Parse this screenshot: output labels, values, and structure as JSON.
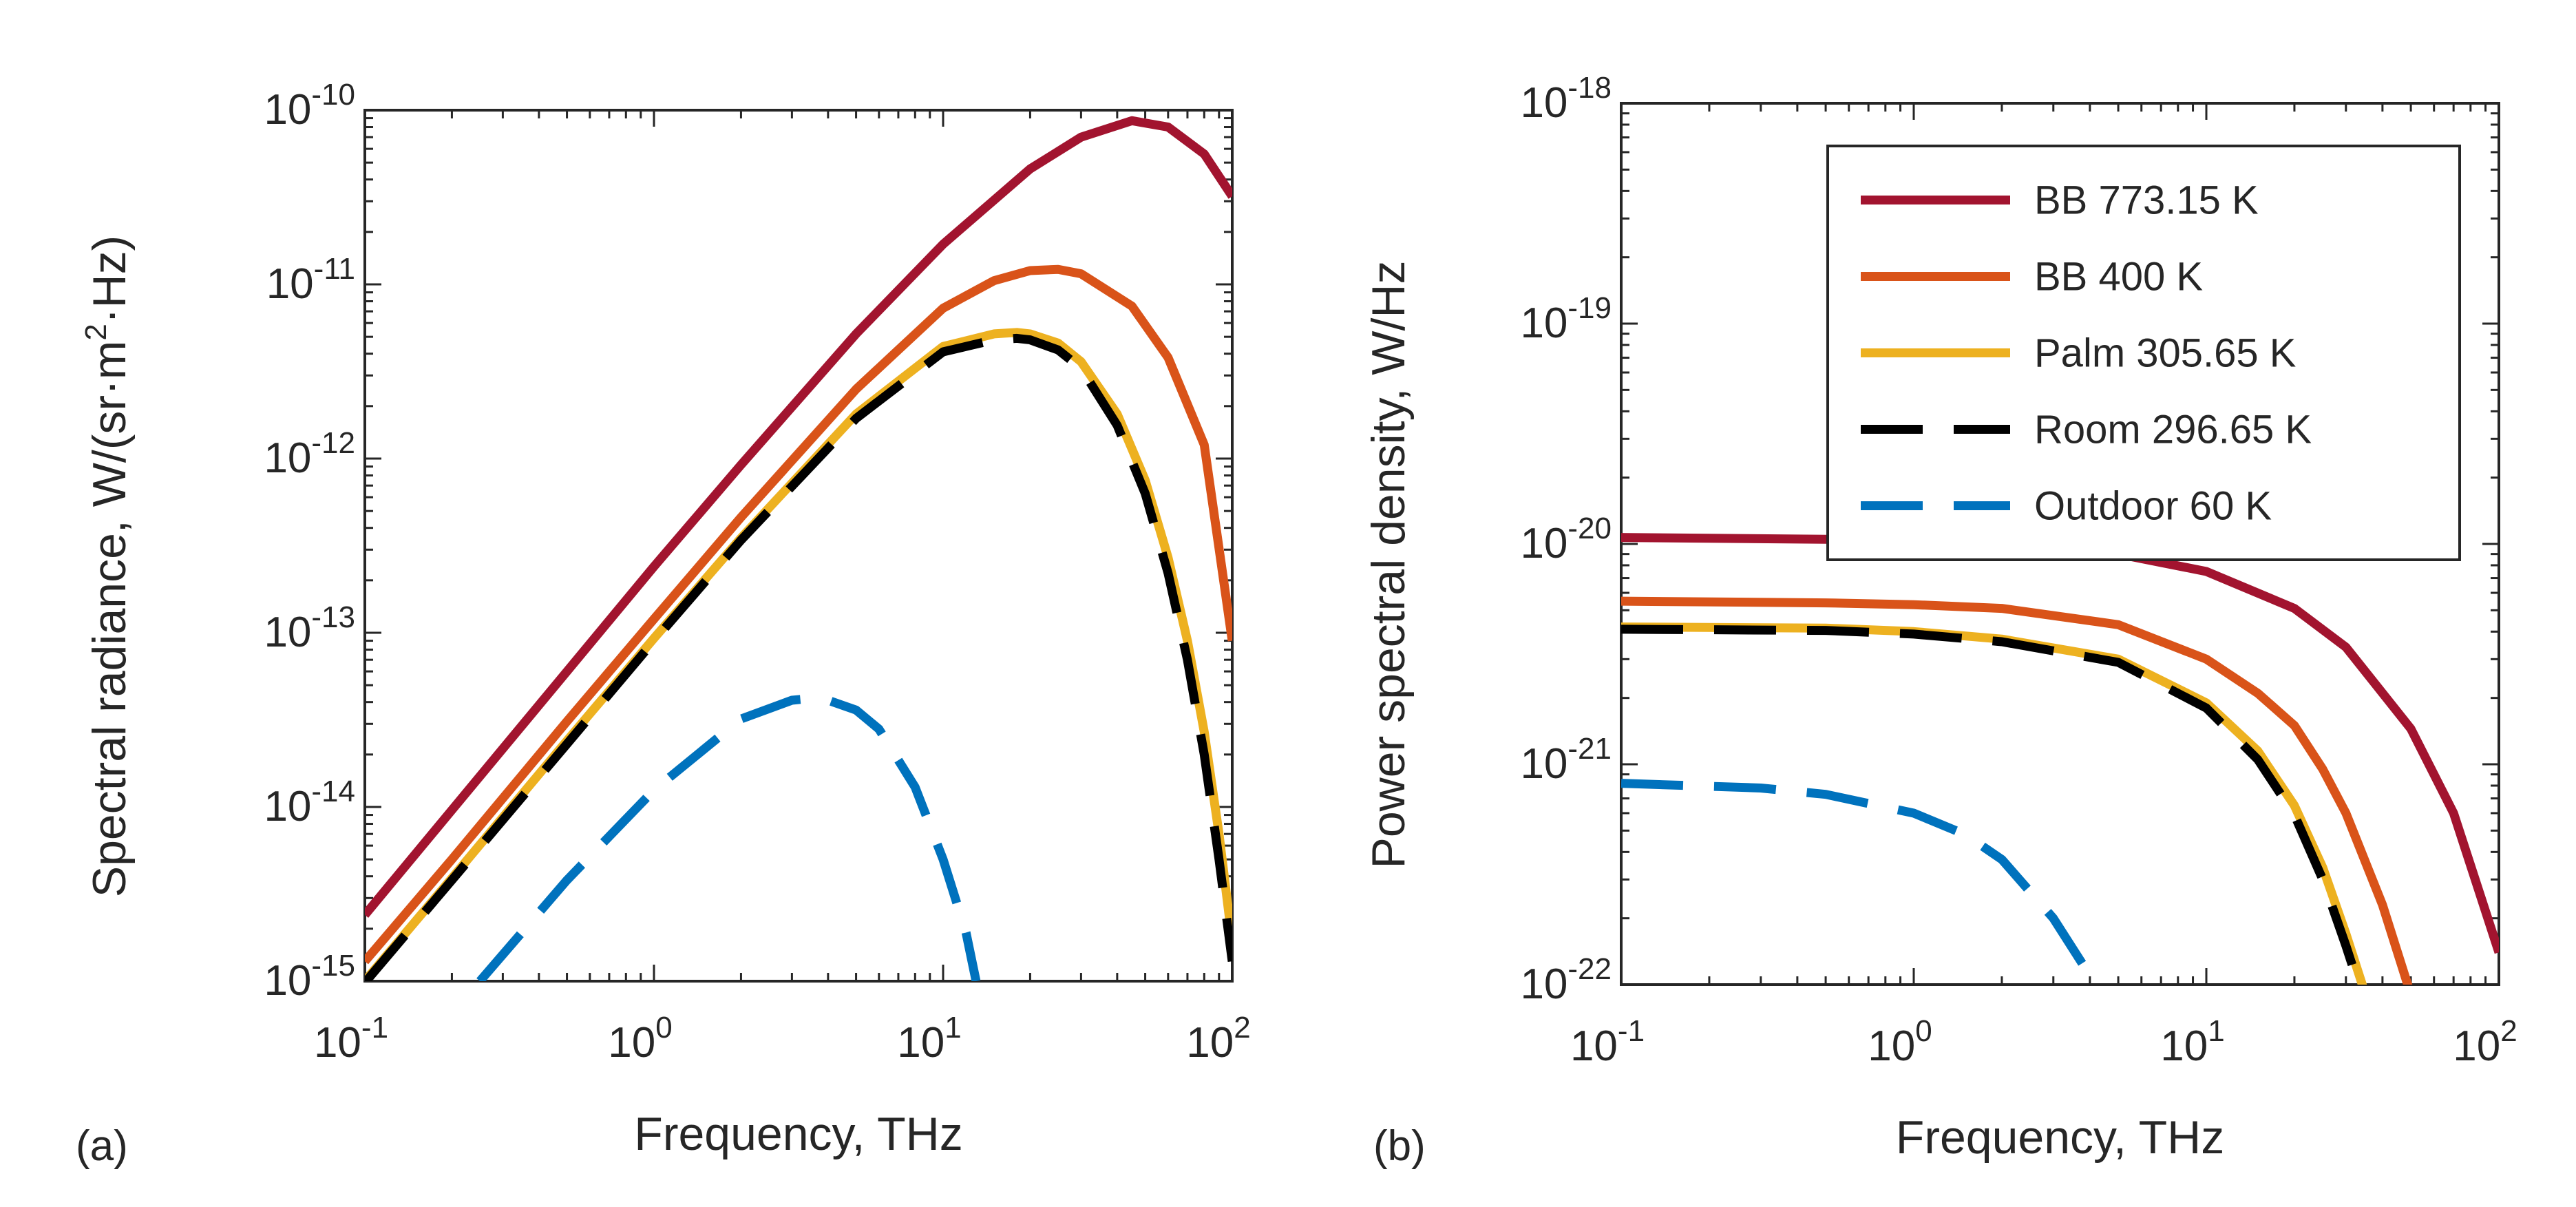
{
  "chart_data": [
    {
      "type": "line",
      "panel_label": "(a)",
      "xlabel": "Frequency, THz",
      "ylabel": "Spectral radiance, W/(sr·m",
      "ylabel_sup": "2",
      "ylabel_end": "·Hz)",
      "xscale": "log",
      "yscale": "log",
      "xlim": [
        0.1,
        100
      ],
      "ylim": [
        1e-15,
        1e-10
      ],
      "xticks": [
        {
          "base": "10",
          "exp": "-1",
          "value": 0.1
        },
        {
          "base": "10",
          "exp": "0",
          "value": 1
        },
        {
          "base": "10",
          "exp": "1",
          "value": 10
        },
        {
          "base": "10",
          "exp": "2",
          "value": 100
        }
      ],
      "yticks": [
        {
          "base": "10",
          "exp": "-15",
          "value": 1e-15
        },
        {
          "base": "10",
          "exp": "-14",
          "value": 1e-14
        },
        {
          "base": "10",
          "exp": "-13",
          "value": 1e-13
        },
        {
          "base": "10",
          "exp": "-12",
          "value": 1e-12
        },
        {
          "base": "10",
          "exp": "-11",
          "value": 1e-11
        },
        {
          "base": "10",
          "exp": "-10",
          "value": 1e-10
        }
      ],
      "series": [
        {
          "name": "BB 773.15 K",
          "x": [
            0.1,
            0.2,
            0.5,
            1,
            2,
            5,
            10,
            20,
            30,
            45,
            60,
            80,
            100
          ],
          "y": [
            2.4e-15,
            9.6e-15,
            6e-14,
            2.4e-13,
            9.2e-13,
            5.2e-12,
            1.7e-11,
            4.6e-11,
            7e-11,
            8.7e-11,
            8e-11,
            5.6e-11,
            3.2e-11
          ]
        },
        {
          "name": "BB 400 K",
          "x": [
            0.1,
            0.2,
            0.5,
            1,
            2,
            5,
            10,
            15,
            20,
            25,
            30,
            45,
            60,
            80,
            100
          ],
          "y": [
            1.3e-15,
            5e-15,
            3.1e-14,
            1.2e-13,
            4.6e-13,
            2.5e-12,
            7.3e-12,
            1.05e-11,
            1.2e-11,
            1.22e-11,
            1.15e-11,
            7.5e-12,
            3.8e-12,
            1.2e-12,
            9e-14
          ]
        },
        {
          "name": "Palm 305.65 K",
          "x": [
            0.1,
            0.2,
            0.5,
            1,
            2,
            5,
            10,
            15,
            18,
            20,
            25,
            30,
            40,
            50,
            60,
            70,
            80,
            90,
            100
          ],
          "y": [
            1e-15,
            3.9e-15,
            2.4e-14,
            9.3e-14,
            3.5e-13,
            1.8e-12,
            4.4e-12,
            5.2e-12,
            5.3e-12,
            5.2e-12,
            4.6e-12,
            3.6e-12,
            1.8e-12,
            7.5e-13,
            2.7e-13,
            9e-14,
            2.7e-14,
            7e-15,
            1.7e-15
          ]
        },
        {
          "name": "Room 296.65 K",
          "x": [
            0.1,
            0.2,
            0.5,
            1,
            2,
            5,
            10,
            15,
            18,
            20,
            25,
            30,
            40,
            50,
            60,
            70,
            80,
            90,
            100
          ],
          "y": [
            9.8e-16,
            3.8e-15,
            2.3e-14,
            9e-14,
            3.4e-13,
            1.7e-12,
            4.1e-12,
            4.8e-12,
            4.9e-12,
            4.8e-12,
            4.2e-12,
            3.3e-12,
            1.55e-12,
            6.3e-13,
            2.2e-13,
            7e-14,
            2e-14,
            5e-15,
            1.3e-15
          ]
        },
        {
          "name": "Outdoor 60 K",
          "x": [
            0.25,
            0.5,
            1,
            2,
            3,
            3.5,
            4,
            5,
            6,
            8,
            10,
            12,
            13
          ],
          "y": [
            1e-15,
            3.8e-15,
            1.25e-14,
            3.2e-14,
            4.1e-14,
            4.2e-14,
            4.1e-14,
            3.6e-14,
            2.8e-14,
            1.3e-14,
            5e-15,
            1.9e-15,
            1e-15
          ]
        }
      ]
    },
    {
      "type": "line",
      "panel_label": "(b)",
      "xlabel": "Frequency, THz",
      "ylabel": "Power spectral density, W/Hz",
      "xscale": "log",
      "yscale": "log",
      "xlim": [
        0.1,
        100
      ],
      "ylim": [
        1e-22,
        1e-18
      ],
      "xticks": [
        {
          "base": "10",
          "exp": "-1",
          "value": 0.1
        },
        {
          "base": "10",
          "exp": "0",
          "value": 1
        },
        {
          "base": "10",
          "exp": "1",
          "value": 10
        },
        {
          "base": "10",
          "exp": "2",
          "value": 100
        }
      ],
      "yticks": [
        {
          "base": "10",
          "exp": "-22",
          "value": 1e-22
        },
        {
          "base": "10",
          "exp": "-21",
          "value": 1e-21
        },
        {
          "base": "10",
          "exp": "-20",
          "value": 1e-20
        },
        {
          "base": "10",
          "exp": "-19",
          "value": 1e-19
        },
        {
          "base": "10",
          "exp": "-18",
          "value": 1e-18
        }
      ],
      "series": [
        {
          "name": "BB 773.15 K",
          "x": [
            0.1,
            0.5,
            1,
            2,
            5,
            10,
            20,
            30,
            50,
            70,
            100
          ],
          "y": [
            1.07e-20,
            1.05e-20,
            1.04e-20,
            1e-20,
            9e-21,
            7.5e-21,
            5.1e-21,
            3.4e-21,
            1.45e-21,
            6e-22,
            1.4e-22
          ]
        },
        {
          "name": "BB 400 K",
          "x": [
            0.1,
            0.5,
            1,
            2,
            5,
            10,
            15,
            20,
            25,
            30,
            40,
            50
          ],
          "y": [
            5.5e-21,
            5.4e-21,
            5.3e-21,
            5.1e-21,
            4.3e-21,
            3e-21,
            2.1e-21,
            1.5e-21,
            9.5e-22,
            6e-22,
            2.3e-22,
            9e-23
          ]
        },
        {
          "name": "Palm 305.65 K",
          "x": [
            0.1,
            0.5,
            1,
            2,
            5,
            10,
            15,
            20,
            25,
            30,
            35
          ],
          "y": [
            4.2e-21,
            4.15e-21,
            4e-21,
            3.7e-21,
            3e-21,
            1.9e-21,
            1.15e-21,
            6.5e-22,
            3.4e-22,
            1.7e-22,
            9e-23
          ]
        },
        {
          "name": "Room 296.65 K",
          "x": [
            0.1,
            0.5,
            1,
            2,
            5,
            10,
            15,
            20,
            25,
            30,
            34
          ],
          "y": [
            4.1e-21,
            4.05e-21,
            3.9e-21,
            3.6e-21,
            2.9e-21,
            1.8e-21,
            1.05e-21,
            5.9e-22,
            3e-22,
            1.5e-22,
            9e-23
          ]
        },
        {
          "name": "Outdoor 60 K",
          "x": [
            0.1,
            0.3,
            0.5,
            1,
            1.5,
            2,
            3,
            4,
            4.3
          ],
          "y": [
            8.2e-22,
            7.8e-22,
            7.3e-22,
            6e-22,
            4.8e-22,
            3.7e-22,
            2e-22,
            1.1e-22,
            9e-23
          ]
        }
      ]
    }
  ],
  "legend": [
    {
      "label": "BB 773.15 K",
      "color": "#A2142F",
      "dash": "solid"
    },
    {
      "label": "BB 400 K",
      "color": "#D95319",
      "dash": "solid"
    },
    {
      "label": "Palm 305.65 K",
      "color": "#EDB120",
      "dash": "solid"
    },
    {
      "label": "Room 296.65 K",
      "color": "#000000",
      "dash": "dashed"
    },
    {
      "label": "Outdoor 60 K",
      "color": "#0072BD",
      "dash": "dashed"
    }
  ]
}
